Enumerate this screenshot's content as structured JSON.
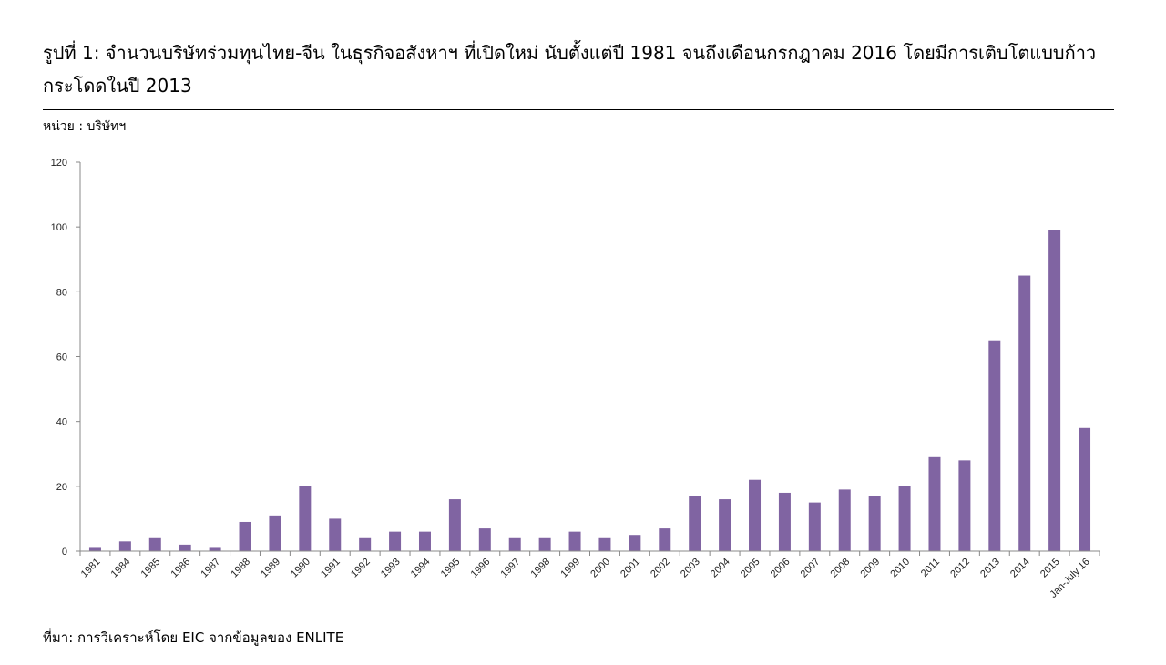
{
  "title": "รูปที่ 1: จำนวนบริษัทร่วมทุนไทย-จีน ในธุรกิจอสังหาฯ ที่เปิดใหม่ นับตั้งแต่ปี 1981 จนถึงเดือนกรกฎาคม 2016 โดยมีการเติบโตแบบก้าวกระโดดในปี 2013",
  "unit_label": "หน่วย : บริษัทฯ",
  "source_note": "ที่มา: การวิเคราะห์โดย EIC จากข้อมูลของ ENLITE",
  "bar_color": "#8064a2",
  "chart_data": {
    "type": "bar",
    "categories": [
      "1981",
      "1984",
      "1985",
      "1986",
      "1987",
      "1988",
      "1989",
      "1990",
      "1991",
      "1992",
      "1993",
      "1994",
      "1995",
      "1996",
      "1997",
      "1998",
      "1999",
      "2000",
      "2001",
      "2002",
      "2003",
      "2004",
      "2005",
      "2006",
      "2007",
      "2008",
      "2009",
      "2010",
      "2011",
      "2012",
      "2013",
      "2014",
      "2015",
      "Jan-July 16"
    ],
    "values": [
      1,
      3,
      4,
      2,
      1,
      9,
      11,
      20,
      10,
      4,
      6,
      6,
      16,
      7,
      4,
      4,
      6,
      4,
      5,
      7,
      17,
      16,
      22,
      18,
      15,
      19,
      17,
      20,
      29,
      28,
      65,
      85,
      99,
      38
    ],
    "yticks": [
      0,
      20,
      40,
      60,
      80,
      100,
      120
    ],
    "ylim": [
      0,
      120
    ],
    "grid": false,
    "legend": "none"
  }
}
